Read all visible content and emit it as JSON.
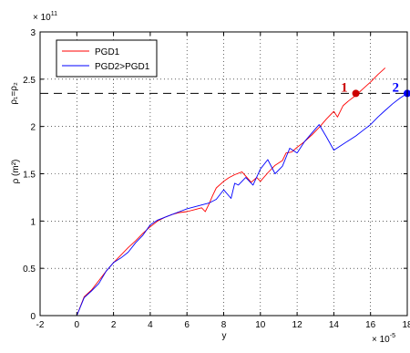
{
  "chart_data": {
    "type": "line",
    "title": "",
    "xlabel": "y",
    "ylabel": "ρ (m²)",
    "x_exponent_label": "× 10",
    "x_exponent_power": "-5",
    "y_exponent_label": "× 10",
    "y_exponent_power": "11",
    "xlim": [
      -2,
      18
    ],
    "ylim": [
      0,
      3
    ],
    "xticks": [
      "-2",
      "0",
      "2",
      "4",
      "6",
      "8",
      "10",
      "12",
      "14",
      "16",
      "18"
    ],
    "yticks": [
      "0",
      "0.5",
      "1",
      "1.5",
      "2",
      "2.5",
      "3"
    ],
    "grid": true,
    "legend_position": "top-left",
    "series": [
      {
        "name": "PGD1",
        "color": "#ff0000",
        "x": [
          0,
          0.4,
          0.8,
          1.2,
          1.6,
          2.0,
          2.4,
          2.8,
          3.2,
          3.6,
          4.0,
          4.4,
          4.8,
          5.2,
          5.6,
          6.0,
          6.4,
          6.8,
          7.0,
          7.2,
          7.4,
          7.6,
          8.0,
          8.3,
          8.6,
          9.0,
          9.5,
          9.8,
          10.0,
          10.4,
          10.8,
          11.2,
          11.4,
          11.7,
          12.0,
          12.4,
          12.8,
          13.2,
          13.6,
          14.0,
          14.2,
          14.5,
          14.8,
          15.2,
          15.6,
          16.0,
          16.4,
          16.8
        ],
        "y": [
          0.0,
          0.2,
          0.27,
          0.37,
          0.47,
          0.56,
          0.64,
          0.72,
          0.79,
          0.87,
          0.94,
          1.0,
          1.04,
          1.07,
          1.09,
          1.1,
          1.12,
          1.14,
          1.1,
          1.18,
          1.27,
          1.35,
          1.42,
          1.46,
          1.49,
          1.52,
          1.41,
          1.46,
          1.42,
          1.51,
          1.59,
          1.64,
          1.72,
          1.73,
          1.78,
          1.84,
          1.91,
          1.99,
          2.08,
          2.16,
          2.1,
          2.22,
          2.27,
          2.33,
          2.4,
          2.47,
          2.55,
          2.62
        ]
      },
      {
        "name": "PGD2>PGD1",
        "color": "#0000ff",
        "x": [
          0,
          0.4,
          0.8,
          1.2,
          1.6,
          2.0,
          2.4,
          2.8,
          3.2,
          3.6,
          4.0,
          4.4,
          4.8,
          5.2,
          5.6,
          6.0,
          6.4,
          6.8,
          7.2,
          7.6,
          8.0,
          8.4,
          8.6,
          8.8,
          9.2,
          9.6,
          10.0,
          10.4,
          10.8,
          11.2,
          11.6,
          12.0,
          12.4,
          12.8,
          13.2,
          13.6,
          14.0,
          14.4,
          14.8,
          15.2,
          15.6,
          16.0,
          16.4,
          16.8,
          17.2,
          17.6,
          18.0
        ],
        "y": [
          0.0,
          0.19,
          0.26,
          0.34,
          0.47,
          0.56,
          0.61,
          0.67,
          0.77,
          0.85,
          0.96,
          1.01,
          1.04,
          1.07,
          1.1,
          1.13,
          1.15,
          1.17,
          1.19,
          1.23,
          1.33,
          1.24,
          1.4,
          1.38,
          1.46,
          1.38,
          1.55,
          1.65,
          1.5,
          1.58,
          1.77,
          1.72,
          1.84,
          1.93,
          2.02,
          1.89,
          1.75,
          1.8,
          1.85,
          1.9,
          1.96,
          2.02,
          2.1,
          2.17,
          2.24,
          2.3,
          2.35
        ]
      }
    ],
    "reference_line": {
      "y": 2.35,
      "label": "ρ₁=ρ₂",
      "style": "dashed",
      "color": "#000000"
    },
    "markers": [
      {
        "label": "1",
        "x": 15.2,
        "y": 2.35,
        "color": "#cc0000",
        "label_color": "#cc0000"
      },
      {
        "label": "2",
        "x": 18.0,
        "y": 2.35,
        "color": "#0000ff",
        "label_color": "#0000ff"
      }
    ]
  }
}
